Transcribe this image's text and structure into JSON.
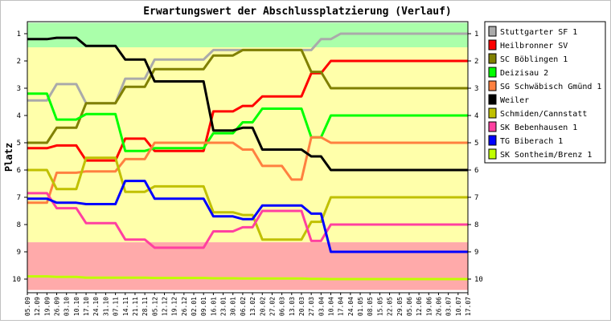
{
  "chart_data": {
    "type": "line",
    "title": "Erwartungswert der Abschlussplatzierung (Verlauf)",
    "ylabel": "Platz",
    "xlabel": "",
    "ylim": [
      1,
      10
    ],
    "y_ticks": [
      1,
      2,
      3,
      4,
      5,
      6,
      7,
      8,
      9,
      10
    ],
    "y_inverted": true,
    "grid": false,
    "legend_position": "right",
    "x": [
      "05.09",
      "12.09",
      "19.09",
      "26.09",
      "03.10",
      "10.10",
      "17.10",
      "24.10",
      "31.10",
      "07.11",
      "14.11",
      "21.11",
      "28.11",
      "05.12",
      "12.12",
      "19.12",
      "26.12",
      "02.01",
      "09.01",
      "16.01",
      "23.01",
      "30.01",
      "06.02",
      "13.02",
      "20.02",
      "27.02",
      "06.03",
      "13.03",
      "20.03",
      "27.03",
      "03.04",
      "10.04",
      "17.04",
      "24.04",
      "01.05",
      "08.05",
      "15.05",
      "22.05",
      "29.05",
      "05.06",
      "12.06",
      "19.06",
      "26.06",
      "03.07",
      "10.07",
      "17.07"
    ],
    "background_bands": [
      {
        "from": 0.6,
        "to": 1.5,
        "color": "#aaffaa"
      },
      {
        "from": 1.5,
        "to": 8.65,
        "color": "#ffffaa"
      },
      {
        "from": 8.65,
        "to": 10.4,
        "color": "#ffaaaa"
      }
    ],
    "series": [
      {
        "name": "Stuttgarter SF 1",
        "color": "#aaaaaa",
        "values": [
          3.45,
          3.45,
          3.45,
          2.85,
          2.85,
          2.85,
          3.55,
          3.55,
          3.55,
          3.55,
          2.65,
          2.65,
          2.65,
          1.95,
          1.95,
          1.95,
          1.95,
          1.95,
          1.95,
          1.6,
          1.6,
          1.6,
          1.6,
          1.6,
          1.6,
          1.6,
          1.6,
          1.6,
          1.6,
          1.6,
          1.2,
          1.2,
          1.0,
          1.0,
          1.0,
          1.0,
          1.0,
          1.0,
          1.0,
          1.0,
          1.0,
          1.0,
          1.0,
          1.0,
          1.0,
          1.0
        ]
      },
      {
        "name": "Heilbronner SV",
        "color": "#ff0000",
        "values": [
          5.2,
          5.2,
          5.2,
          5.1,
          5.1,
          5.1,
          5.65,
          5.65,
          5.65,
          5.65,
          4.85,
          4.85,
          4.85,
          5.3,
          5.3,
          5.3,
          5.3,
          5.3,
          5.3,
          3.85,
          3.85,
          3.85,
          3.65,
          3.65,
          3.3,
          3.3,
          3.3,
          3.3,
          3.3,
          2.45,
          2.45,
          2.0,
          2.0,
          2.0,
          2.0,
          2.0,
          2.0,
          2.0,
          2.0,
          2.0,
          2.0,
          2.0,
          2.0,
          2.0,
          2.0,
          2.0
        ]
      },
      {
        "name": "SC Böblingen 1",
        "color": "#808000",
        "values": [
          5.0,
          5.0,
          5.0,
          4.45,
          4.45,
          4.45,
          3.55,
          3.55,
          3.55,
          3.55,
          2.95,
          2.95,
          2.95,
          2.3,
          2.3,
          2.3,
          2.3,
          2.3,
          2.3,
          1.8,
          1.8,
          1.8,
          1.6,
          1.6,
          1.6,
          1.6,
          1.6,
          1.6,
          1.6,
          2.4,
          2.4,
          3.0,
          3.0,
          3.0,
          3.0,
          3.0,
          3.0,
          3.0,
          3.0,
          3.0,
          3.0,
          3.0,
          3.0,
          3.0,
          3.0,
          3.0
        ]
      },
      {
        "name": "Deizisau 2",
        "color": "#00ff00",
        "values": [
          3.2,
          3.2,
          3.2,
          4.15,
          4.15,
          4.15,
          3.95,
          3.95,
          3.95,
          3.95,
          5.3,
          5.3,
          5.3,
          5.2,
          5.2,
          5.2,
          5.2,
          5.2,
          5.2,
          4.65,
          4.65,
          4.65,
          4.25,
          4.25,
          3.75,
          3.75,
          3.75,
          3.75,
          3.75,
          4.8,
          4.8,
          4.0,
          4.0,
          4.0,
          4.0,
          4.0,
          4.0,
          4.0,
          4.0,
          4.0,
          4.0,
          4.0,
          4.0,
          4.0,
          4.0,
          4.0
        ]
      },
      {
        "name": "SG Schwäbisch Gmünd 1",
        "color": "#ff8040",
        "values": [
          7.2,
          7.2,
          7.2,
          6.1,
          6.1,
          6.1,
          6.05,
          6.05,
          6.05,
          6.05,
          5.6,
          5.6,
          5.6,
          5.0,
          5.0,
          5.0,
          5.0,
          5.0,
          5.0,
          5.0,
          5.0,
          5.0,
          5.25,
          5.25,
          5.85,
          5.85,
          5.85,
          6.35,
          6.35,
          4.8,
          4.8,
          5.0,
          5.0,
          5.0,
          5.0,
          5.0,
          5.0,
          5.0,
          5.0,
          5.0,
          5.0,
          5.0,
          5.0,
          5.0,
          5.0,
          5.0
        ]
      },
      {
        "name": "Weiler",
        "color": "#000000",
        "values": [
          1.2,
          1.2,
          1.2,
          1.15,
          1.15,
          1.15,
          1.45,
          1.45,
          1.45,
          1.45,
          1.95,
          1.95,
          1.95,
          2.75,
          2.75,
          2.75,
          2.75,
          2.75,
          2.75,
          4.55,
          4.55,
          4.55,
          4.45,
          4.45,
          5.25,
          5.25,
          5.25,
          5.25,
          5.25,
          5.5,
          5.5,
          6.0,
          6.0,
          6.0,
          6.0,
          6.0,
          6.0,
          6.0,
          6.0,
          6.0,
          6.0,
          6.0,
          6.0,
          6.0,
          6.0,
          6.0
        ]
      },
      {
        "name": "Schmiden/Cannstatt",
        "color": "#c0c000",
        "values": [
          6.0,
          6.0,
          6.0,
          6.7,
          6.7,
          6.7,
          5.55,
          5.55,
          5.55,
          5.55,
          6.8,
          6.8,
          6.8,
          6.6,
          6.6,
          6.6,
          6.6,
          6.6,
          6.6,
          7.55,
          7.55,
          7.55,
          7.65,
          7.65,
          8.55,
          8.55,
          8.55,
          8.55,
          8.55,
          7.9,
          7.9,
          7.0,
          7.0,
          7.0,
          7.0,
          7.0,
          7.0,
          7.0,
          7.0,
          7.0,
          7.0,
          7.0,
          7.0,
          7.0,
          7.0,
          7.0
        ]
      },
      {
        "name": "SK Bebenhausen 1",
        "color": "#ff40a0",
        "values": [
          6.85,
          6.85,
          6.85,
          7.4,
          7.4,
          7.4,
          7.95,
          7.95,
          7.95,
          7.95,
          8.55,
          8.55,
          8.55,
          8.85,
          8.85,
          8.85,
          8.85,
          8.85,
          8.85,
          8.25,
          8.25,
          8.25,
          8.1,
          8.1,
          7.5,
          7.5,
          7.5,
          7.5,
          7.5,
          8.6,
          8.6,
          8.0,
          8.0,
          8.0,
          8.0,
          8.0,
          8.0,
          8.0,
          8.0,
          8.0,
          8.0,
          8.0,
          8.0,
          8.0,
          8.0,
          8.0
        ]
      },
      {
        "name": "TG Biberach 1",
        "color": "#0000ff",
        "values": [
          7.05,
          7.05,
          7.05,
          7.2,
          7.2,
          7.2,
          7.25,
          7.25,
          7.25,
          7.25,
          6.4,
          6.4,
          6.4,
          7.05,
          7.05,
          7.05,
          7.05,
          7.05,
          7.05,
          7.7,
          7.7,
          7.7,
          7.8,
          7.8,
          7.3,
          7.3,
          7.3,
          7.3,
          7.3,
          7.6,
          7.6,
          9.0,
          9.0,
          9.0,
          9.0,
          9.0,
          9.0,
          9.0,
          9.0,
          9.0,
          9.0,
          9.0,
          9.0,
          9.0,
          9.0,
          9.0
        ]
      },
      {
        "name": "SK Sontheim/Brenz 1",
        "color": "#c0ff00",
        "values": [
          9.9,
          9.9,
          9.9,
          9.92,
          9.92,
          9.92,
          9.95,
          9.95,
          9.95,
          9.95,
          9.95,
          9.95,
          9.95,
          9.96,
          9.96,
          9.96,
          9.96,
          9.96,
          9.96,
          9.97,
          9.97,
          9.97,
          9.98,
          9.98,
          9.98,
          9.98,
          9.98,
          9.98,
          9.98,
          9.99,
          9.99,
          10.0,
          10.0,
          10.0,
          10.0,
          10.0,
          10.0,
          10.0,
          10.0,
          10.0,
          10.0,
          10.0,
          10.0,
          10.0,
          10.0,
          10.0
        ]
      }
    ]
  }
}
